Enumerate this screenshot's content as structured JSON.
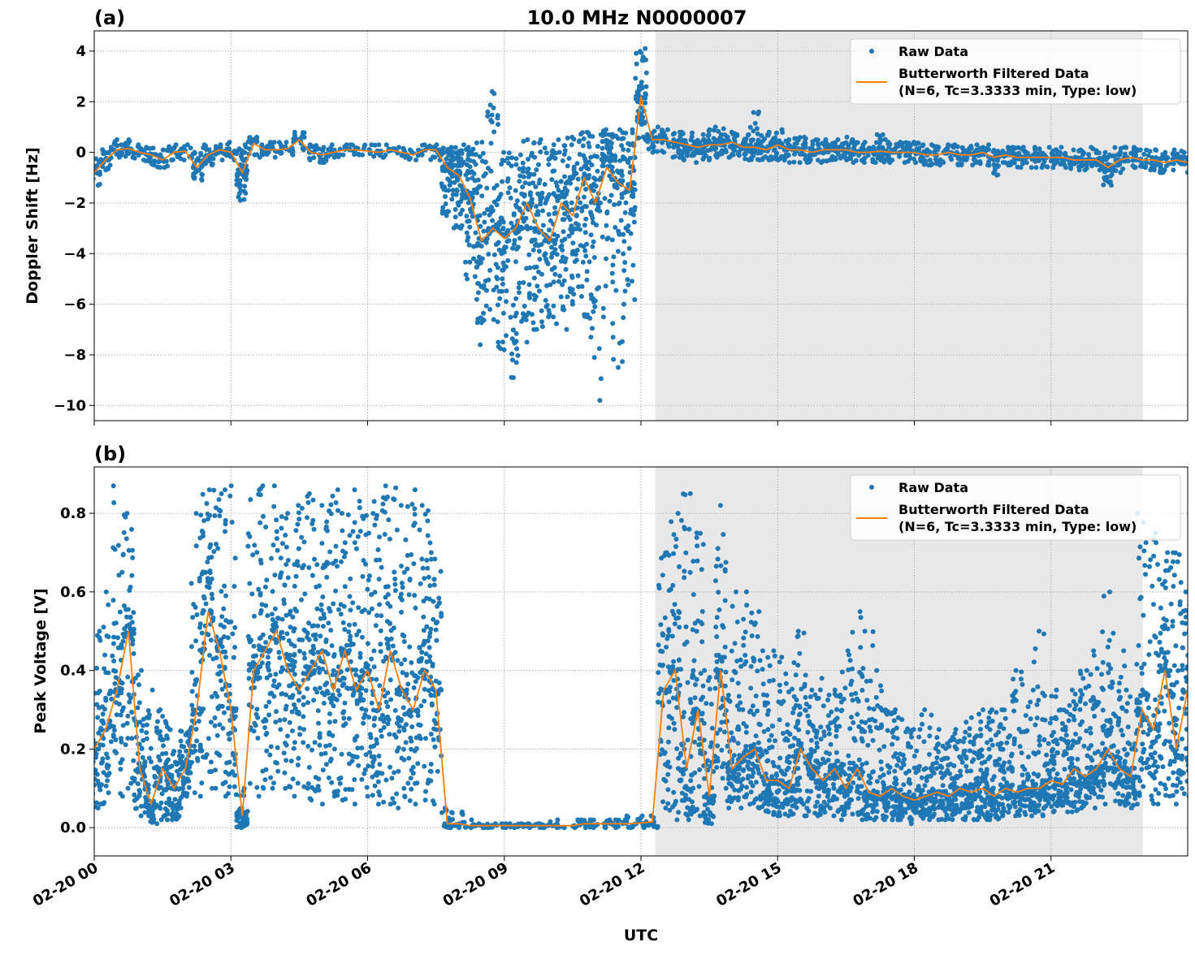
{
  "title": "10.0 MHz N0000007",
  "xlabel": "UTC",
  "x_tick_labels": [
    "02-20 00",
    "02-20 03",
    "02-20 06",
    "02-20 09",
    "02-20 12",
    "02-20 15",
    "02-20 18",
    "02-20 21"
  ],
  "colors": {
    "raw": "#1f77b4",
    "filtered": "#ff7f0e",
    "shade": "#e8e8e8"
  },
  "chart_data": [
    {
      "type": "scatter+line",
      "panel_label": "(a)",
      "ylabel": "Doppler Shift [Hz]",
      "ylim": [
        -10.6,
        4.8
      ],
      "y_ticks": [
        "4",
        "2",
        "0",
        "−2",
        "−4",
        "−6",
        "−8",
        "−10"
      ],
      "y_tick_values": [
        4,
        2,
        0,
        -2,
        -4,
        -6,
        -8,
        -10
      ],
      "xlim": [
        "02-20 00:00",
        "02-21 00:00"
      ],
      "grid": true,
      "legend": {
        "placement": "upper-right",
        "entries": [
          "Raw Data",
          "Butterworth Filtered Data",
          "(N=6, Tc=3.3333 min, Type: low)"
        ]
      },
      "shaded_span": [
        "02-20 12:19",
        "02-20 23:01"
      ],
      "x_step_minutes": 15,
      "x_start": "02-20 00:00",
      "series": [
        {
          "name": "Butterworth Filtered Data (N=6, Tc=3.3333 min, Type: low)",
          "kind": "line",
          "values": [
            -0.8,
            -0.3,
            0.1,
            0.15,
            0.0,
            -0.1,
            -0.3,
            0.0,
            0.05,
            -0.6,
            -0.1,
            0.1,
            0.0,
            -0.8,
            0.35,
            0.1,
            0.1,
            0.15,
            0.5,
            0.0,
            -0.1,
            0.0,
            0.1,
            0.1,
            0.05,
            0.0,
            0.1,
            0.0,
            -0.1,
            0.1,
            0.1,
            -0.6,
            -0.9,
            -1.8,
            -3.5,
            -3.0,
            -3.4,
            -3.0,
            -2.0,
            -3.0,
            -3.5,
            -2.0,
            -2.5,
            -1.0,
            -2.0,
            -0.6,
            -1.2,
            -1.5,
            2.2,
            0.5,
            0.5,
            0.4,
            0.3,
            0.2,
            0.3,
            0.3,
            0.4,
            0.2,
            0.2,
            0.1,
            0.3,
            0.1,
            0.1,
            0.0,
            0.1,
            0.1,
            0.1,
            0.0,
            0.0,
            0.05,
            0.0,
            0.0,
            0.0,
            -0.1,
            -0.1,
            0.0,
            -0.1,
            -0.1,
            0.0,
            -0.2,
            -0.1,
            -0.2,
            -0.2,
            -0.2,
            -0.2,
            -0.2,
            -0.3,
            -0.3,
            -0.3,
            -0.6,
            -0.3,
            -0.2,
            -0.3,
            -0.3,
            -0.4,
            -0.3,
            -0.4
          ]
        },
        {
          "name": "Raw Data",
          "kind": "scatter-envelope",
          "low": [
            -1.3,
            -0.7,
            -0.2,
            -0.2,
            -0.3,
            -0.5,
            -0.6,
            -0.3,
            -0.3,
            -1.1,
            -0.5,
            -0.3,
            -0.3,
            -1.9,
            -0.1,
            -0.2,
            -0.2,
            -0.1,
            0.1,
            -0.3,
            -0.4,
            -0.2,
            -0.1,
            -0.1,
            -0.1,
            -0.2,
            -0.1,
            -0.2,
            -0.3,
            -0.1,
            -0.3,
            -2.5,
            -3.0,
            -5.0,
            -7.6,
            -7.5,
            -7.8,
            -8.9,
            -7.5,
            -7.0,
            -6.5,
            -7.0,
            -6.0,
            -6.5,
            -9.8,
            -6.5,
            -8.5,
            -6.0,
            0.5,
            0.0,
            0.0,
            -0.2,
            -0.3,
            -0.4,
            -0.3,
            -0.2,
            -0.2,
            -0.3,
            -0.3,
            -0.3,
            -0.3,
            -0.4,
            -0.4,
            -0.4,
            -0.4,
            -0.3,
            -0.3,
            -0.4,
            -0.4,
            -0.4,
            -0.4,
            -0.4,
            -0.4,
            -0.5,
            -0.5,
            -0.4,
            -0.5,
            -0.5,
            -0.5,
            -0.9,
            -0.5,
            -0.6,
            -0.6,
            -0.6,
            -0.6,
            -0.6,
            -0.7,
            -0.7,
            -0.7,
            -1.3,
            -0.8,
            -0.6,
            -0.6,
            -0.7,
            -0.8,
            -0.7,
            -0.8
          ],
          "high": [
            -0.2,
            0.2,
            0.5,
            0.5,
            0.3,
            0.2,
            0.1,
            0.3,
            0.3,
            0.0,
            0.3,
            0.3,
            0.4,
            0.3,
            0.6,
            0.4,
            0.4,
            0.4,
            0.8,
            0.3,
            0.2,
            0.3,
            0.3,
            0.3,
            0.3,
            0.3,
            0.3,
            0.2,
            0.1,
            0.3,
            0.3,
            0.2,
            0.3,
            0.2,
            0.4,
            2.4,
            0.0,
            -0.1,
            0.5,
            0.5,
            0.3,
            0.5,
            0.6,
            0.8,
            0.7,
            0.9,
            0.9,
            0.9,
            4.1,
            1.0,
            0.9,
            0.8,
            0.8,
            0.7,
            0.9,
            1.0,
            0.8,
            0.7,
            1.6,
            0.8,
            0.9,
            0.5,
            0.6,
            0.5,
            0.5,
            0.5,
            0.6,
            0.5,
            0.4,
            0.7,
            0.4,
            0.4,
            0.4,
            0.3,
            0.3,
            0.3,
            0.3,
            0.3,
            0.2,
            0.3,
            0.2,
            0.2,
            0.2,
            0.2,
            0.2,
            0.2,
            0.1,
            0.1,
            0.2,
            0.0,
            0.2,
            0.2,
            0.1,
            0.1,
            0.0,
            0.1,
            0.0
          ]
        }
      ]
    },
    {
      "type": "scatter+line",
      "panel_label": "(b)",
      "ylabel": "Peak Voltage [V]",
      "ylim": [
        -0.072,
        0.918
      ],
      "y_ticks": [
        "0.8",
        "0.6",
        "0.4",
        "0.2",
        "0.0"
      ],
      "y_tick_values": [
        0.8,
        0.6,
        0.4,
        0.2,
        0.0
      ],
      "xlim": [
        "02-20 00:00",
        "02-21 00:00"
      ],
      "grid": true,
      "legend": {
        "placement": "upper-right",
        "entries": [
          "Raw Data",
          "Butterworth Filtered Data",
          "(N=6, Tc=3.3333 min, Type: low)"
        ]
      },
      "shaded_span": [
        "02-20 12:19",
        "02-20 23:01"
      ],
      "x_step_minutes": 15,
      "x_start": "02-20 00:00",
      "series": [
        {
          "name": "Butterworth Filtered Data (N=6, Tc=3.3333 min, Type: low)",
          "kind": "line",
          "values": [
            0.2,
            0.25,
            0.35,
            0.5,
            0.15,
            0.06,
            0.15,
            0.1,
            0.15,
            0.3,
            0.55,
            0.45,
            0.3,
            0.03,
            0.4,
            0.45,
            0.5,
            0.4,
            0.35,
            0.4,
            0.45,
            0.35,
            0.45,
            0.35,
            0.4,
            0.3,
            0.45,
            0.35,
            0.3,
            0.4,
            0.35,
            0.01,
            0.01,
            0.005,
            0.005,
            0.005,
            0.005,
            0.005,
            0.005,
            0.005,
            0.005,
            0.005,
            0.005,
            0.01,
            0.01,
            0.01,
            0.01,
            0.01,
            0.012,
            0.015,
            0.35,
            0.4,
            0.15,
            0.3,
            0.08,
            0.4,
            0.15,
            0.18,
            0.2,
            0.12,
            0.12,
            0.1,
            0.2,
            0.15,
            0.12,
            0.15,
            0.1,
            0.15,
            0.09,
            0.08,
            0.1,
            0.08,
            0.07,
            0.08,
            0.09,
            0.08,
            0.1,
            0.09,
            0.1,
            0.08,
            0.1,
            0.09,
            0.1,
            0.1,
            0.12,
            0.11,
            0.15,
            0.13,
            0.15,
            0.2,
            0.15,
            0.13,
            0.3,
            0.25,
            0.4,
            0.2,
            0.35
          ]
        },
        {
          "name": "Raw Data",
          "kind": "scatter-envelope",
          "low": [
            0.05,
            0.06,
            0.08,
            0.1,
            0.03,
            0.01,
            0.02,
            0.02,
            0.05,
            0.08,
            0.1,
            0.1,
            0.08,
            0.0,
            0.08,
            0.1,
            0.1,
            0.1,
            0.08,
            0.07,
            0.06,
            0.08,
            0.07,
            0.06,
            0.08,
            0.06,
            0.06,
            0.05,
            0.06,
            0.07,
            0.06,
            0.0,
            0.0,
            0.0,
            0.0,
            0.0,
            0.0,
            0.0,
            0.0,
            0.0,
            0.0,
            0.0,
            0.0,
            0.0,
            0.0,
            0.0,
            0.0,
            0.0,
            0.0,
            0.0,
            0.05,
            0.02,
            0.02,
            0.03,
            0.01,
            0.1,
            0.05,
            0.05,
            0.05,
            0.04,
            0.03,
            0.03,
            0.03,
            0.03,
            0.03,
            0.03,
            0.02,
            0.02,
            0.02,
            0.02,
            0.02,
            0.02,
            0.01,
            0.02,
            0.02,
            0.02,
            0.02,
            0.02,
            0.02,
            0.02,
            0.03,
            0.03,
            0.03,
            0.03,
            0.04,
            0.04,
            0.04,
            0.05,
            0.05,
            0.06,
            0.06,
            0.05,
            0.06,
            0.06,
            0.08,
            0.06,
            0.08
          ],
          "high": [
            0.5,
            0.6,
            0.87,
            0.8,
            0.4,
            0.35,
            0.3,
            0.25,
            0.25,
            0.8,
            0.86,
            0.86,
            0.87,
            0.1,
            0.86,
            0.87,
            0.87,
            0.8,
            0.82,
            0.85,
            0.82,
            0.86,
            0.8,
            0.86,
            0.8,
            0.84,
            0.87,
            0.82,
            0.86,
            0.82,
            0.7,
            0.05,
            0.04,
            0.02,
            0.01,
            0.01,
            0.01,
            0.01,
            0.01,
            0.01,
            0.015,
            0.02,
            0.02,
            0.02,
            0.02,
            0.02,
            0.02,
            0.03,
            0.03,
            0.03,
            0.7,
            0.8,
            0.85,
            0.75,
            0.4,
            0.82,
            0.6,
            0.6,
            0.55,
            0.45,
            0.45,
            0.42,
            0.5,
            0.35,
            0.38,
            0.35,
            0.45,
            0.55,
            0.5,
            0.4,
            0.3,
            0.28,
            0.25,
            0.3,
            0.25,
            0.23,
            0.25,
            0.28,
            0.3,
            0.3,
            0.3,
            0.4,
            0.35,
            0.5,
            0.35,
            0.3,
            0.35,
            0.4,
            0.45,
            0.6,
            0.45,
            0.35,
            0.8,
            0.75,
            0.7,
            0.7,
            0.6
          ]
        }
      ]
    }
  ]
}
